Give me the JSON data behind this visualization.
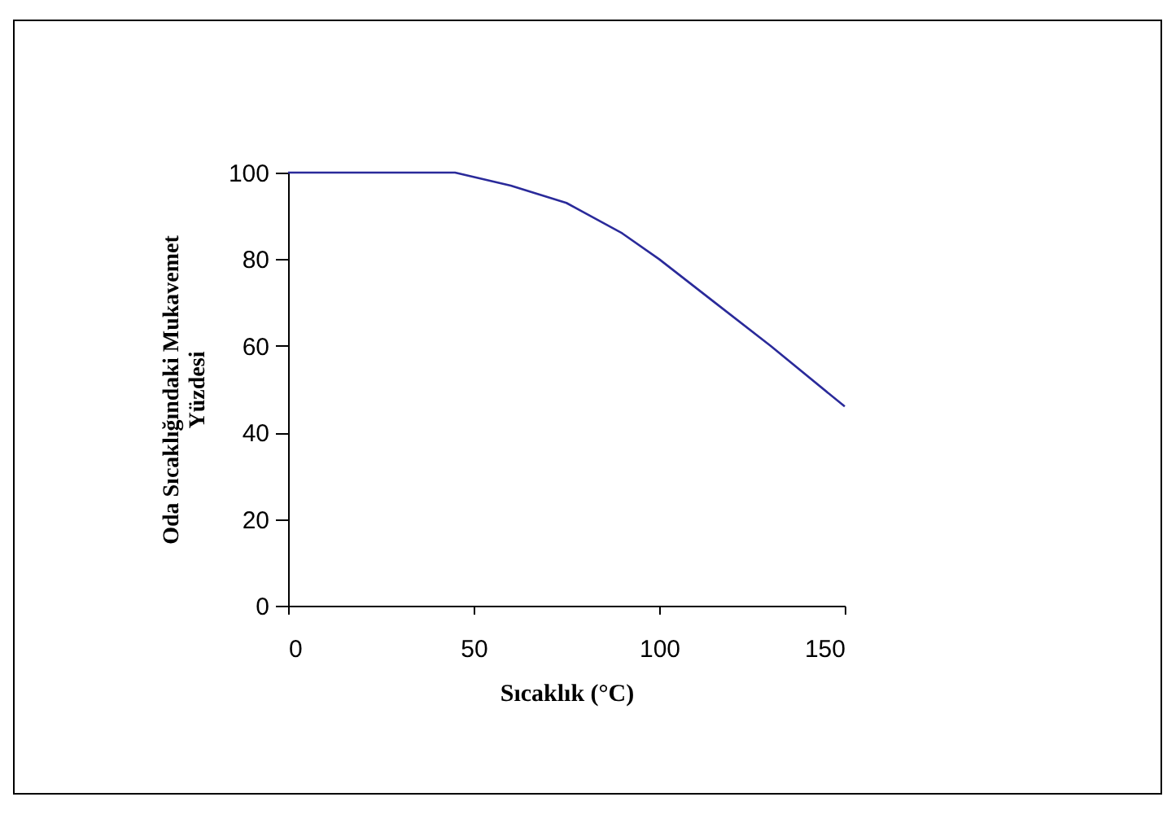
{
  "chart_data": {
    "type": "line",
    "xlabel": "Sıcaklık (°C)",
    "ylabel": "Oda Sıcaklığındaki Mukavemet\nYüzdesi",
    "x": [
      0,
      45,
      60,
      75,
      90,
      100,
      115,
      130,
      150
    ],
    "series": [
      {
        "color": "#2a2a9a",
        "values": [
          100,
          100,
          97,
          93,
          86,
          80,
          70,
          60,
          46
        ]
      }
    ],
    "xlim": [
      0,
      150
    ],
    "xticks": [
      0,
      50,
      100,
      150
    ],
    "ylim": [
      0,
      100
    ],
    "yticks": [
      0,
      20,
      40,
      60,
      80,
      100
    ],
    "grid": false,
    "marker": "none",
    "line_style": "solid"
  }
}
